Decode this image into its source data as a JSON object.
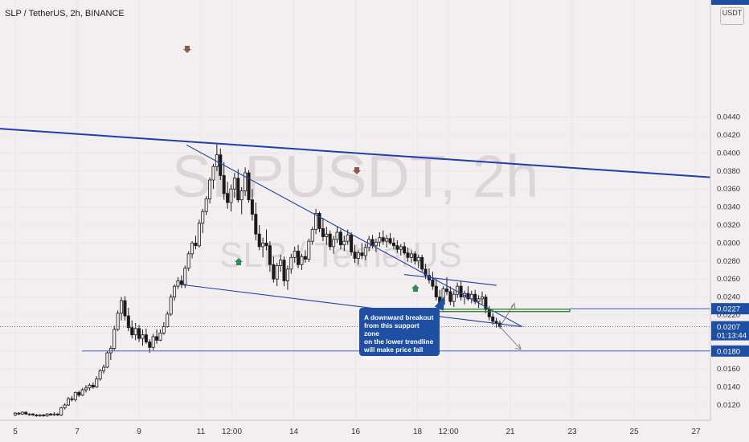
{
  "header": {
    "title": "SLP / TetherUS, 2h, BINANCE",
    "currency": "USDT"
  },
  "watermark": {
    "symbol": "SLPUSDT, 2h",
    "pair": "SLP / TetherUS"
  },
  "annotation": {
    "lines": [
      "A downward breakout",
      "from this support zone",
      "on the lower trendline",
      "will make price fall more"
    ]
  },
  "colors": {
    "trendline": "#1f3fa8",
    "support_zone": "#2e7d32",
    "up_arrow": "#2e8b57",
    "down_arrow": "#8d5a4a",
    "candle": "#1a1a1a",
    "price_tag": "#1f4fa3"
  },
  "chart_data": {
    "type": "candlestick",
    "x_ticks": [
      "5",
      "7",
      "9",
      "11",
      "12:00",
      "14",
      "16",
      "18",
      "12:00",
      "21",
      "23",
      "25",
      "27"
    ],
    "y_ticks": [
      "0.0120",
      "0.0140",
      "0.0160",
      "0.0180",
      "0.0200",
      "0.0220",
      "0.0240",
      "0.0260",
      "0.0280",
      "0.0300",
      "0.0320",
      "0.0340",
      "0.0360",
      "0.0380",
      "0.0400",
      "0.0420",
      "0.0440"
    ],
    "ylim": [
      0.0107,
      0.0466
    ],
    "price_tags": [
      {
        "label": "0.0227",
        "value": 0.0227
      },
      {
        "label": "0.0207",
        "value": 0.0207,
        "sub": "01:13:44"
      },
      {
        "label": "0.0180",
        "value": 0.018
      }
    ],
    "support_zone": {
      "value": 0.02255,
      "from": "18",
      "to": "21"
    },
    "trendlines": [
      {
        "name": "long-term resistance",
        "from": {
          "x": "5",
          "y": 0.0427
        },
        "to": {
          "x": "27+",
          "y": 0.0373
        }
      },
      {
        "name": "upper trendline",
        "from": {
          "x": "10.5",
          "y": 0.0409
        },
        "to": {
          "x": "21.2",
          "y": 0.0206
        }
      },
      {
        "name": "lower trendline",
        "from": {
          "x": "9.5",
          "y": 0.0254
        },
        "to": {
          "x": "21.2",
          "y": 0.0206
        }
      },
      {
        "name": "minor resistance",
        "from": {
          "x": "17.5",
          "y": 0.0265
        },
        "to": {
          "x": "20.5",
          "y": 0.0253
        }
      }
    ],
    "candles_ohlc": [
      [
        0.0109,
        0.0112,
        0.0108,
        0.0111
      ],
      [
        0.0111,
        0.0112,
        0.0109,
        0.011
      ],
      [
        0.011,
        0.0113,
        0.0109,
        0.0112
      ],
      [
        0.0112,
        0.0113,
        0.0109,
        0.011
      ],
      [
        0.011,
        0.0111,
        0.0108,
        0.011
      ],
      [
        0.011,
        0.0111,
        0.0108,
        0.0109
      ],
      [
        0.0109,
        0.011,
        0.0107,
        0.0108
      ],
      [
        0.0108,
        0.011,
        0.0107,
        0.0109
      ],
      [
        0.0109,
        0.011,
        0.0107,
        0.0108
      ],
      [
        0.0108,
        0.0111,
        0.0107,
        0.011
      ],
      [
        0.011,
        0.0111,
        0.0108,
        0.0109
      ],
      [
        0.0109,
        0.0112,
        0.0108,
        0.011
      ],
      [
        0.011,
        0.0111,
        0.0108,
        0.0109
      ],
      [
        0.0109,
        0.0118,
        0.0108,
        0.0117
      ],
      [
        0.0117,
        0.0122,
        0.0115,
        0.012
      ],
      [
        0.012,
        0.0129,
        0.0119,
        0.0127
      ],
      [
        0.0127,
        0.013,
        0.0124,
        0.0126
      ],
      [
        0.0126,
        0.0135,
        0.0124,
        0.0134
      ],
      [
        0.0134,
        0.0136,
        0.0129,
        0.0131
      ],
      [
        0.0131,
        0.0139,
        0.013,
        0.0137
      ],
      [
        0.0137,
        0.0142,
        0.0134,
        0.0139
      ],
      [
        0.0139,
        0.0144,
        0.0136,
        0.0142
      ],
      [
        0.0142,
        0.0145,
        0.0138,
        0.014
      ],
      [
        0.014,
        0.0152,
        0.0139,
        0.0149
      ],
      [
        0.0149,
        0.016,
        0.0147,
        0.0158
      ],
      [
        0.0158,
        0.0165,
        0.0155,
        0.0162
      ],
      [
        0.0162,
        0.018,
        0.0161,
        0.0178
      ],
      [
        0.0178,
        0.0186,
        0.017,
        0.0183
      ],
      [
        0.0183,
        0.0208,
        0.0181,
        0.0204
      ],
      [
        0.0204,
        0.0225,
        0.0202,
        0.0222
      ],
      [
        0.0222,
        0.024,
        0.0214,
        0.0236
      ],
      [
        0.0236,
        0.0241,
        0.0214,
        0.0219
      ],
      [
        0.0219,
        0.0228,
        0.0202,
        0.0206
      ],
      [
        0.0206,
        0.0214,
        0.0194,
        0.0198
      ],
      [
        0.0198,
        0.0211,
        0.0192,
        0.0205
      ],
      [
        0.0205,
        0.0209,
        0.019,
        0.0194
      ],
      [
        0.0194,
        0.0204,
        0.0186,
        0.0198
      ],
      [
        0.0198,
        0.0205,
        0.0188,
        0.019
      ],
      [
        0.019,
        0.0193,
        0.0178,
        0.0184
      ],
      [
        0.0184,
        0.0199,
        0.0181,
        0.0196
      ],
      [
        0.0196,
        0.0204,
        0.0188,
        0.0192
      ],
      [
        0.0192,
        0.0204,
        0.0191,
        0.02
      ],
      [
        0.02,
        0.0212,
        0.0198,
        0.0207
      ],
      [
        0.0207,
        0.0224,
        0.0206,
        0.0221
      ],
      [
        0.0221,
        0.0243,
        0.0219,
        0.024
      ],
      [
        0.024,
        0.0254,
        0.0236,
        0.0252
      ],
      [
        0.0252,
        0.0262,
        0.0249,
        0.0258
      ],
      [
        0.0258,
        0.0264,
        0.025,
        0.0254
      ],
      [
        0.0254,
        0.0275,
        0.025,
        0.0272
      ],
      [
        0.0272,
        0.0291,
        0.0269,
        0.0288
      ],
      [
        0.0288,
        0.0302,
        0.0283,
        0.03
      ],
      [
        0.03,
        0.0308,
        0.0293,
        0.0297
      ],
      [
        0.0297,
        0.0326,
        0.0295,
        0.0322
      ],
      [
        0.0322,
        0.0338,
        0.0311,
        0.0335
      ],
      [
        0.0335,
        0.0352,
        0.0331,
        0.0349
      ],
      [
        0.0349,
        0.0373,
        0.0344,
        0.037
      ],
      [
        0.037,
        0.0388,
        0.036,
        0.0385
      ],
      [
        0.0385,
        0.041,
        0.038,
        0.0398
      ],
      [
        0.0398,
        0.0405,
        0.037,
        0.0375
      ],
      [
        0.0375,
        0.039,
        0.0348,
        0.0355
      ],
      [
        0.0355,
        0.0368,
        0.0338,
        0.0345
      ],
      [
        0.0345,
        0.0365,
        0.0335,
        0.036
      ],
      [
        0.036,
        0.0378,
        0.035,
        0.0372
      ],
      [
        0.0372,
        0.0382,
        0.0345,
        0.0348
      ],
      [
        0.0348,
        0.0362,
        0.0332,
        0.0358
      ],
      [
        0.0358,
        0.0384,
        0.0352,
        0.0378
      ],
      [
        0.0378,
        0.0381,
        0.0345,
        0.0348
      ],
      [
        0.0348,
        0.036,
        0.0325,
        0.0332
      ],
      [
        0.0332,
        0.0345,
        0.0303,
        0.031
      ],
      [
        0.031,
        0.032,
        0.0292,
        0.0296
      ],
      [
        0.0296,
        0.0306,
        0.0284,
        0.03
      ],
      [
        0.03,
        0.0315,
        0.0292,
        0.0297
      ],
      [
        0.0297,
        0.0302,
        0.0268,
        0.0276
      ],
      [
        0.0276,
        0.0285,
        0.0256,
        0.026
      ],
      [
        0.026,
        0.0278,
        0.0252,
        0.0275
      ],
      [
        0.0275,
        0.0287,
        0.0268,
        0.0281
      ],
      [
        0.0281,
        0.0285,
        0.0252,
        0.0258
      ],
      [
        0.0258,
        0.0275,
        0.0248,
        0.0271
      ],
      [
        0.0271,
        0.0288,
        0.0266,
        0.0284
      ],
      [
        0.0284,
        0.0296,
        0.0278,
        0.0291
      ],
      [
        0.0291,
        0.0298,
        0.0272,
        0.0276
      ],
      [
        0.0276,
        0.0288,
        0.027,
        0.0285
      ],
      [
        0.0285,
        0.0292,
        0.0278,
        0.0282
      ],
      [
        0.0282,
        0.0305,
        0.0279,
        0.0302
      ],
      [
        0.0302,
        0.0318,
        0.0298,
        0.0315
      ],
      [
        0.0315,
        0.0338,
        0.031,
        0.0333
      ],
      [
        0.0333,
        0.0335,
        0.0312,
        0.0316
      ],
      [
        0.0316,
        0.0328,
        0.0302,
        0.0307
      ],
      [
        0.0307,
        0.0318,
        0.0298,
        0.031
      ],
      [
        0.031,
        0.0314,
        0.0292,
        0.0296
      ],
      [
        0.0296,
        0.0308,
        0.0288,
        0.0304
      ],
      [
        0.0304,
        0.0318,
        0.03,
        0.0312
      ],
      [
        0.0312,
        0.0315,
        0.0293,
        0.0298
      ],
      [
        0.0298,
        0.0308,
        0.0291,
        0.0302
      ],
      [
        0.0302,
        0.0315,
        0.0298,
        0.0309
      ],
      [
        0.0309,
        0.0312,
        0.0286,
        0.029
      ],
      [
        0.029,
        0.0298,
        0.0278,
        0.0283
      ],
      [
        0.0283,
        0.0292,
        0.0276,
        0.0289
      ],
      [
        0.0289,
        0.03,
        0.0282,
        0.0286
      ],
      [
        0.0286,
        0.0299,
        0.0281,
        0.0295
      ],
      [
        0.0295,
        0.0308,
        0.0291,
        0.0304
      ],
      [
        0.0304,
        0.0309,
        0.0294,
        0.0297
      ],
      [
        0.0297,
        0.0305,
        0.029,
        0.0301
      ],
      [
        0.0301,
        0.0312,
        0.0296,
        0.0306
      ],
      [
        0.0306,
        0.0314,
        0.0298,
        0.0302
      ],
      [
        0.0302,
        0.0309,
        0.0295,
        0.0305
      ],
      [
        0.0305,
        0.0311,
        0.0298,
        0.03
      ],
      [
        0.03,
        0.0306,
        0.0293,
        0.0297
      ],
      [
        0.0297,
        0.0303,
        0.0289,
        0.0293
      ],
      [
        0.0293,
        0.0299,
        0.0286,
        0.0296
      ],
      [
        0.0296,
        0.0301,
        0.0287,
        0.0289
      ],
      [
        0.0289,
        0.0295,
        0.0279,
        0.0284
      ],
      [
        0.0284,
        0.0292,
        0.0278,
        0.0288
      ],
      [
        0.0288,
        0.0291,
        0.0276,
        0.028
      ],
      [
        0.028,
        0.0287,
        0.0272,
        0.0284
      ],
      [
        0.0284,
        0.0287,
        0.0268,
        0.0271
      ],
      [
        0.0271,
        0.0277,
        0.026,
        0.0264
      ],
      [
        0.0264,
        0.0272,
        0.0255,
        0.0259
      ],
      [
        0.0259,
        0.0268,
        0.0248,
        0.0252
      ],
      [
        0.0252,
        0.026,
        0.0236,
        0.024
      ],
      [
        0.024,
        0.0248,
        0.0228,
        0.0232
      ],
      [
        0.0232,
        0.0252,
        0.023,
        0.0249
      ],
      [
        0.0249,
        0.0262,
        0.0242,
        0.0246
      ],
      [
        0.0246,
        0.0252,
        0.0231,
        0.0235
      ],
      [
        0.0235,
        0.0247,
        0.0229,
        0.0243
      ],
      [
        0.0243,
        0.0256,
        0.0239,
        0.0252
      ],
      [
        0.0252,
        0.0258,
        0.0236,
        0.024
      ],
      [
        0.024,
        0.0247,
        0.0232,
        0.0244
      ],
      [
        0.0244,
        0.0252,
        0.0236,
        0.0238
      ],
      [
        0.0238,
        0.0247,
        0.0233,
        0.0243
      ],
      [
        0.0243,
        0.0248,
        0.0232,
        0.0235
      ],
      [
        0.0235,
        0.0242,
        0.0228,
        0.0238
      ],
      [
        0.0238,
        0.0246,
        0.0232,
        0.024
      ],
      [
        0.024,
        0.0243,
        0.0222,
        0.0226
      ],
      [
        0.0226,
        0.023,
        0.0214,
        0.0218
      ],
      [
        0.0218,
        0.0222,
        0.0209,
        0.0213
      ],
      [
        0.0213,
        0.0217,
        0.0206,
        0.0211
      ],
      [
        0.0211,
        0.0214,
        0.0205,
        0.0207
      ]
    ]
  }
}
